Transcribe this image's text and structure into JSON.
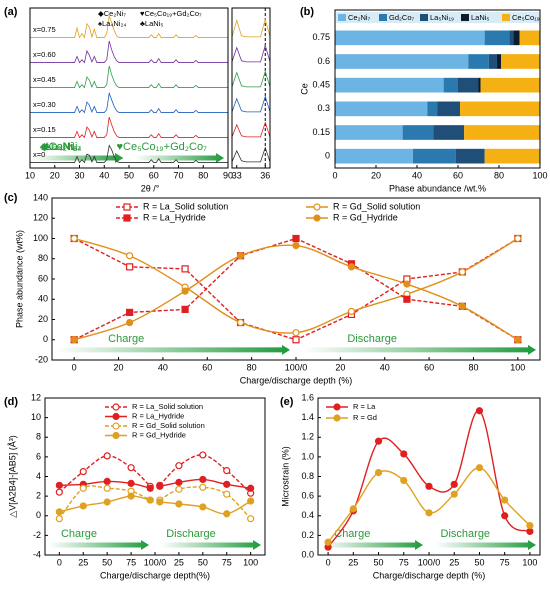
{
  "chart_data": [
    {
      "type": "line",
      "offset": true,
      "label": "(a)",
      "x": [
        10,
        28,
        29,
        30,
        31,
        32,
        33,
        34,
        35,
        36,
        37,
        40,
        41,
        42,
        43,
        44,
        45,
        46,
        58,
        59,
        60,
        61,
        62,
        63,
        64,
        68,
        69,
        70,
        71,
        76,
        77,
        78,
        90
      ],
      "xlim": [
        10,
        90
      ],
      "xticks": [
        10,
        20,
        30,
        40,
        50,
        60,
        70,
        80,
        90
      ],
      "xlabel": "2θ /°",
      "annotations": [
        "◆Ce₂Ni₇",
        "♥Ce₅Co₁₉+Gd₂Co₇",
        "♠La₄Ni₂₄",
        "♣LaNi₅"
      ],
      "series": [
        {
          "name": "x=0.75",
          "color": "#e0a020",
          "values": [
            0.02,
            0.02,
            0.45,
            0.02,
            0.2,
            0.02,
            0.65,
            0.5,
            0.05,
            0.4,
            0.02,
            0.02,
            0.2,
            1.0,
            0.7,
            0.35,
            0.1,
            0.02,
            0.02,
            0.15,
            0.02,
            0.02,
            0.2,
            0.02,
            0.02,
            0.02,
            0.15,
            0.02,
            0.02,
            0.02,
            0.12,
            0.02,
            0.02
          ]
        },
        {
          "name": "x=0.60",
          "color": "#7030a0",
          "values": [
            0.02,
            0.02,
            0.3,
            0.02,
            0.15,
            0.02,
            0.55,
            0.35,
            0.05,
            0.3,
            0.02,
            0.02,
            0.15,
            1.0,
            0.6,
            0.3,
            0.1,
            0.02,
            0.02,
            0.15,
            0.02,
            0.02,
            0.2,
            0.02,
            0.02,
            0.02,
            0.15,
            0.02,
            0.02,
            0.02,
            0.12,
            0.02,
            0.02
          ]
        },
        {
          "name": "x=0.45",
          "color": "#2e9e4a",
          "values": [
            0.02,
            0.02,
            0.3,
            0.02,
            0.15,
            0.02,
            0.5,
            0.35,
            0.05,
            0.3,
            0.02,
            0.02,
            0.15,
            1.0,
            0.6,
            0.3,
            0.1,
            0.02,
            0.02,
            0.15,
            0.02,
            0.02,
            0.2,
            0.02,
            0.02,
            0.02,
            0.15,
            0.02,
            0.02,
            0.02,
            0.12,
            0.02,
            0.02
          ]
        },
        {
          "name": "x=0.30",
          "color": "#1f5fbf",
          "values": [
            0.02,
            0.02,
            0.3,
            0.02,
            0.15,
            0.02,
            0.5,
            0.35,
            0.05,
            0.3,
            0.02,
            0.02,
            0.15,
            0.9,
            0.6,
            0.3,
            0.1,
            0.02,
            0.02,
            0.15,
            0.02,
            0.02,
            0.2,
            0.02,
            0.02,
            0.02,
            0.15,
            0.02,
            0.02,
            0.02,
            0.12,
            0.02,
            0.02
          ]
        },
        {
          "name": "x=0.15",
          "color": "#e02020",
          "values": [
            0.02,
            0.02,
            0.3,
            0.02,
            0.15,
            0.02,
            0.5,
            0.35,
            0.05,
            0.3,
            0.02,
            0.02,
            0.15,
            0.95,
            0.6,
            0.3,
            0.1,
            0.02,
            0.02,
            0.15,
            0.02,
            0.02,
            0.2,
            0.02,
            0.02,
            0.02,
            0.15,
            0.02,
            0.02,
            0.02,
            0.12,
            0.02,
            0.02
          ]
        },
        {
          "name": "x=0",
          "color": "#333333",
          "values": [
            0.02,
            0.02,
            0.3,
            0.02,
            0.15,
            0.02,
            0.4,
            0.35,
            0.05,
            0.3,
            0.02,
            0.02,
            0.15,
            0.8,
            0.6,
            0.3,
            0.1,
            0.02,
            0.02,
            0.15,
            0.02,
            0.02,
            0.2,
            0.02,
            0.02,
            0.02,
            0.15,
            0.02,
            0.02,
            0.02,
            0.12,
            0.02,
            0.02
          ]
        }
      ]
    },
    {
      "type": "line",
      "offset": true,
      "x": [
        32.5,
        33,
        33.5,
        34,
        34.5,
        35,
        35.5,
        36,
        36.5
      ],
      "xlim": [
        32.5,
        36.5
      ],
      "xticks": [
        33,
        36
      ],
      "refline": 36,
      "series": [
        {
          "color": "#e0a020",
          "values": [
            0.05,
            0.8,
            0.1,
            0.05,
            0.05,
            0.05,
            0.05,
            0.85,
            0.05
          ]
        },
        {
          "color": "#7030a0",
          "values": [
            0.05,
            0.7,
            0.1,
            0.05,
            0.05,
            0.05,
            0.05,
            0.8,
            0.05
          ]
        },
        {
          "color": "#2e9e4a",
          "values": [
            0.05,
            0.7,
            0.1,
            0.05,
            0.05,
            0.05,
            0.05,
            0.75,
            0.05
          ]
        },
        {
          "color": "#1f5fbf",
          "values": [
            0.05,
            0.65,
            0.1,
            0.05,
            0.05,
            0.05,
            0.05,
            0.75,
            0.05
          ]
        },
        {
          "color": "#e02020",
          "values": [
            0.05,
            0.6,
            0.1,
            0.05,
            0.05,
            0.05,
            0.05,
            0.7,
            0.05
          ]
        },
        {
          "color": "#333333",
          "values": [
            0.05,
            0.55,
            0.1,
            0.05,
            0.05,
            0.05,
            0.05,
            0.7,
            0.05
          ]
        }
      ]
    },
    {
      "type": "bar",
      "orientation": "horizontal",
      "stacked": true,
      "label": "(b)",
      "categories": [
        "0",
        "0.15",
        "0.3",
        "0.45",
        "0.6",
        "0.75"
      ],
      "xlim": [
        0,
        100
      ],
      "xticks": [
        0,
        20,
        40,
        60,
        80,
        100
      ],
      "xlabel": "Phase abundance /wt.%",
      "ylabel": "Ce",
      "series": [
        {
          "name": "Ce₂Ni₇",
          "color": "#6cb4e4",
          "values": [
            38,
            33,
            45,
            53,
            65,
            73
          ]
        },
        {
          "name": "Gd₂Co₇",
          "color": "#2a7ab0",
          "values": [
            21,
            15,
            5,
            7,
            10,
            12
          ]
        },
        {
          "name": "La₅Ni₁₉",
          "color": "#1f4e79",
          "values": [
            14,
            15,
            11,
            10,
            4,
            2
          ]
        },
        {
          "name": "LaNi₅",
          "color": "#0d1b2a",
          "values": [
            0,
            0,
            0,
            1,
            2,
            3
          ]
        },
        {
          "name": "Ce₅Co₁₉",
          "color": "#f5b014",
          "values": [
            27,
            37,
            39,
            29,
            19,
            10
          ]
        }
      ]
    },
    {
      "type": "line",
      "label": "(c)",
      "legend": "upper center",
      "x": [
        0,
        25,
        50,
        75,
        100,
        125,
        150,
        175,
        200
      ],
      "xlim": [
        -10,
        210
      ],
      "xticks": [
        0,
        20,
        40,
        60,
        80,
        {
          "value": 100,
          "label": "100/0"
        },
        {
          "value": 120,
          "label": "20"
        },
        {
          "value": 140,
          "label": "40"
        },
        {
          "value": 160,
          "label": "60"
        },
        {
          "value": 180,
          "label": "80"
        },
        {
          "value": 200,
          "label": "100"
        }
      ],
      "ylim": [
        -20,
        140
      ],
      "yticks": [
        -20,
        0,
        20,
        40,
        60,
        80,
        100,
        120,
        140
      ],
      "xlabel": "Charge/discharge depth (%)",
      "ylabel": "Phase abundance (wt%)",
      "annotations": [
        "Charge",
        "Discharge"
      ],
      "series": [
        {
          "name": "R = La_Solid solution",
          "color": "#e02020",
          "marker": "square",
          "filled": false,
          "dash": true,
          "smooth": false,
          "values": [
            100,
            72,
            70,
            17,
            0,
            25,
            60,
            67,
            100
          ]
        },
        {
          "name": "R = Gd_Solid solution",
          "color": "#e0901a",
          "marker": "circle",
          "filled": false,
          "dash": false,
          "smooth": true,
          "values": [
            100,
            83,
            52,
            17,
            7,
            28,
            45,
            67,
            100
          ]
        },
        {
          "name": "R = La_Hydride",
          "color": "#e02020",
          "marker": "square",
          "filled": true,
          "dash": true,
          "smooth": false,
          "values": [
            0,
            27,
            30,
            83,
            100,
            75,
            40,
            33,
            0
          ]
        },
        {
          "name": "R = Gd_Hydride",
          "color": "#e0901a",
          "marker": "circle",
          "filled": true,
          "dash": false,
          "smooth": true,
          "values": [
            0,
            17,
            48,
            83,
            93,
            72,
            55,
            33,
            0
          ]
        }
      ]
    },
    {
      "type": "line",
      "label": "(d)",
      "legend": "upper center",
      "x": [
        0,
        25,
        50,
        75,
        95,
        null,
        105,
        125,
        150,
        175,
        200
      ],
      "xlim": [
        -15,
        215
      ],
      "xticks": [
        0,
        25,
        50,
        75,
        {
          "value": 100,
          "label": "100/0"
        },
        {
          "value": 125,
          "label": "25"
        },
        {
          "value": 150,
          "label": "50"
        },
        {
          "value": 175,
          "label": "75"
        },
        {
          "value": 200,
          "label": "100"
        }
      ],
      "ylim": [
        -4,
        12
      ],
      "yticks": [
        -4,
        -2,
        0,
        2,
        4,
        6,
        8,
        10,
        12
      ],
      "xlabel": "Charge/discharge depth(%)",
      "ylabel": "△V[A2B4]-[AB5] (Å³)",
      "annotations": [
        "Charge",
        "Discharge"
      ],
      "series": [
        {
          "name": "R = La_Solid solution",
          "color": "#e02020",
          "marker": "circle",
          "filled": false,
          "dash": true,
          "smooth": true,
          "values": [
            2.4,
            4.5,
            6.1,
            4.9,
            3.0,
            null,
            3.1,
            5.1,
            6.2,
            4.6,
            2.3
          ]
        },
        {
          "name": "R = La_Hydride",
          "color": "#e02020",
          "marker": "circle",
          "filled": true,
          "dash": false,
          "smooth": true,
          "values": [
            3.1,
            3.2,
            3.5,
            3.3,
            2.8,
            null,
            3.0,
            3.4,
            3.7,
            3.2,
            2.8
          ]
        },
        {
          "name": "R = Gd_Solid solution",
          "color": "#e0a020",
          "marker": "circle",
          "filled": false,
          "dash": true,
          "smooth": true,
          "values": [
            -0.3,
            2.8,
            2.8,
            2.5,
            1.6,
            null,
            1.6,
            2.7,
            2.9,
            2.2,
            -0.3
          ]
        },
        {
          "name": "R = Gd_Hydride",
          "color": "#e0a020",
          "marker": "circle",
          "filled": true,
          "dash": false,
          "smooth": true,
          "values": [
            0.4,
            1.0,
            1.4,
            2.0,
            1.6,
            null,
            1.4,
            1.2,
            0.9,
            0.2,
            1.5
          ]
        }
      ]
    },
    {
      "type": "line",
      "label": "(e)",
      "legend": "upper left",
      "x": [
        0,
        25,
        50,
        75,
        100,
        125,
        150,
        175,
        200
      ],
      "xlim": [
        -10,
        210
      ],
      "xticks": [
        0,
        25,
        50,
        75,
        {
          "value": 100,
          "label": "100/0"
        },
        {
          "value": 125,
          "label": "25"
        },
        {
          "value": 150,
          "label": "50"
        },
        {
          "value": 175,
          "label": "75"
        },
        {
          "value": 200,
          "label": "100"
        }
      ],
      "ylim": [
        0,
        1.6
      ],
      "yticks": [
        {
          "value": 0,
          "label": "0.0"
        },
        0.2,
        0.4,
        0.6,
        0.8,
        {
          "value": 1,
          "label": "1.0"
        },
        1.2,
        1.4,
        1.6
      ],
      "xlabel": "Charge/discharge depth (%)",
      "ylabel": "Microstrain (%)",
      "annotations": [
        "Charge",
        "Discharge"
      ],
      "series": [
        {
          "name": "R = La",
          "color": "#e02020",
          "marker": "circle",
          "filled": true,
          "dash": false,
          "smooth": true,
          "values": [
            0.08,
            0.45,
            1.16,
            1.03,
            0.7,
            0.72,
            1.47,
            0.4,
            0.24
          ]
        },
        {
          "name": "R = Gd",
          "color": "#e0a020",
          "marker": "circle",
          "filled": true,
          "dash": false,
          "smooth": true,
          "values": [
            0.13,
            0.47,
            0.84,
            0.76,
            0.43,
            0.62,
            0.89,
            0.56,
            0.3
          ]
        }
      ]
    }
  ]
}
